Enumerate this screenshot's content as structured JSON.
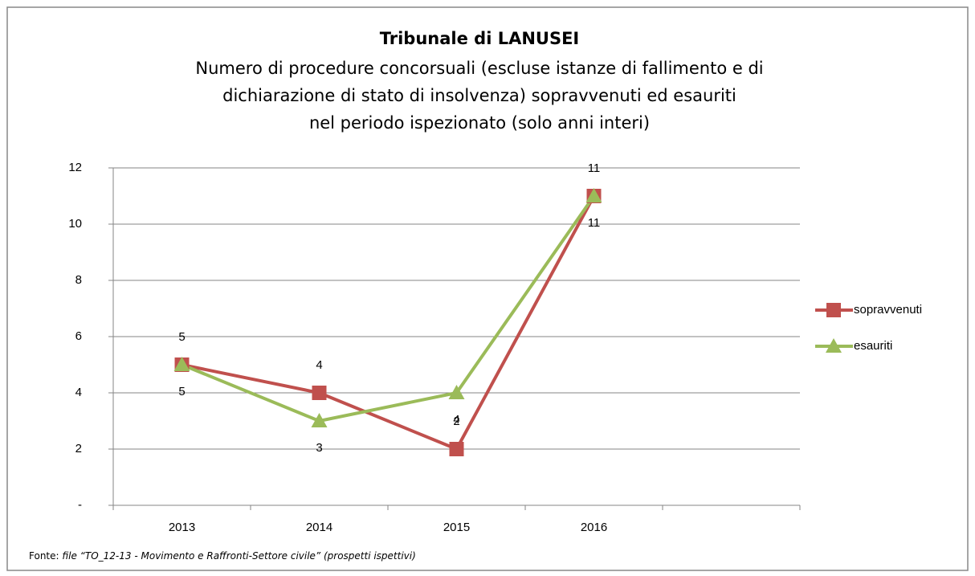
{
  "chart_data": {
    "type": "line",
    "title": "Tribunale di LANUSEI",
    "subtitle": [
      "Numero di procedure concorsuali (escluse istanze di fallimento e di",
      "dichiarazione di stato di insolvenza) sopravvenuti ed esauriti",
      "nel periodo ispezionato (solo anni interi)"
    ],
    "categories": [
      "2013",
      "2014",
      "2015",
      "2016",
      null
    ],
    "series": [
      {
        "name": "sopravvenuti",
        "color": "#c0504d",
        "marker": "square",
        "values": [
          5,
          4,
          2,
          11,
          null
        ]
      },
      {
        "name": "esauriti",
        "color": "#9bbb59",
        "marker": "triangle",
        "values": [
          5,
          3,
          4,
          11,
          null
        ]
      }
    ],
    "ylim": [
      0,
      12
    ],
    "yticks": [
      {
        "value": 0,
        "label": "-"
      },
      2,
      4,
      6,
      8,
      10,
      12
    ],
    "grid": true,
    "legend": "right",
    "source_label": "Fonte:",
    "source_text": "file “TO_12-13 - Movimento e Raffronti-Settore civile” (prospetti ispettivi)"
  }
}
